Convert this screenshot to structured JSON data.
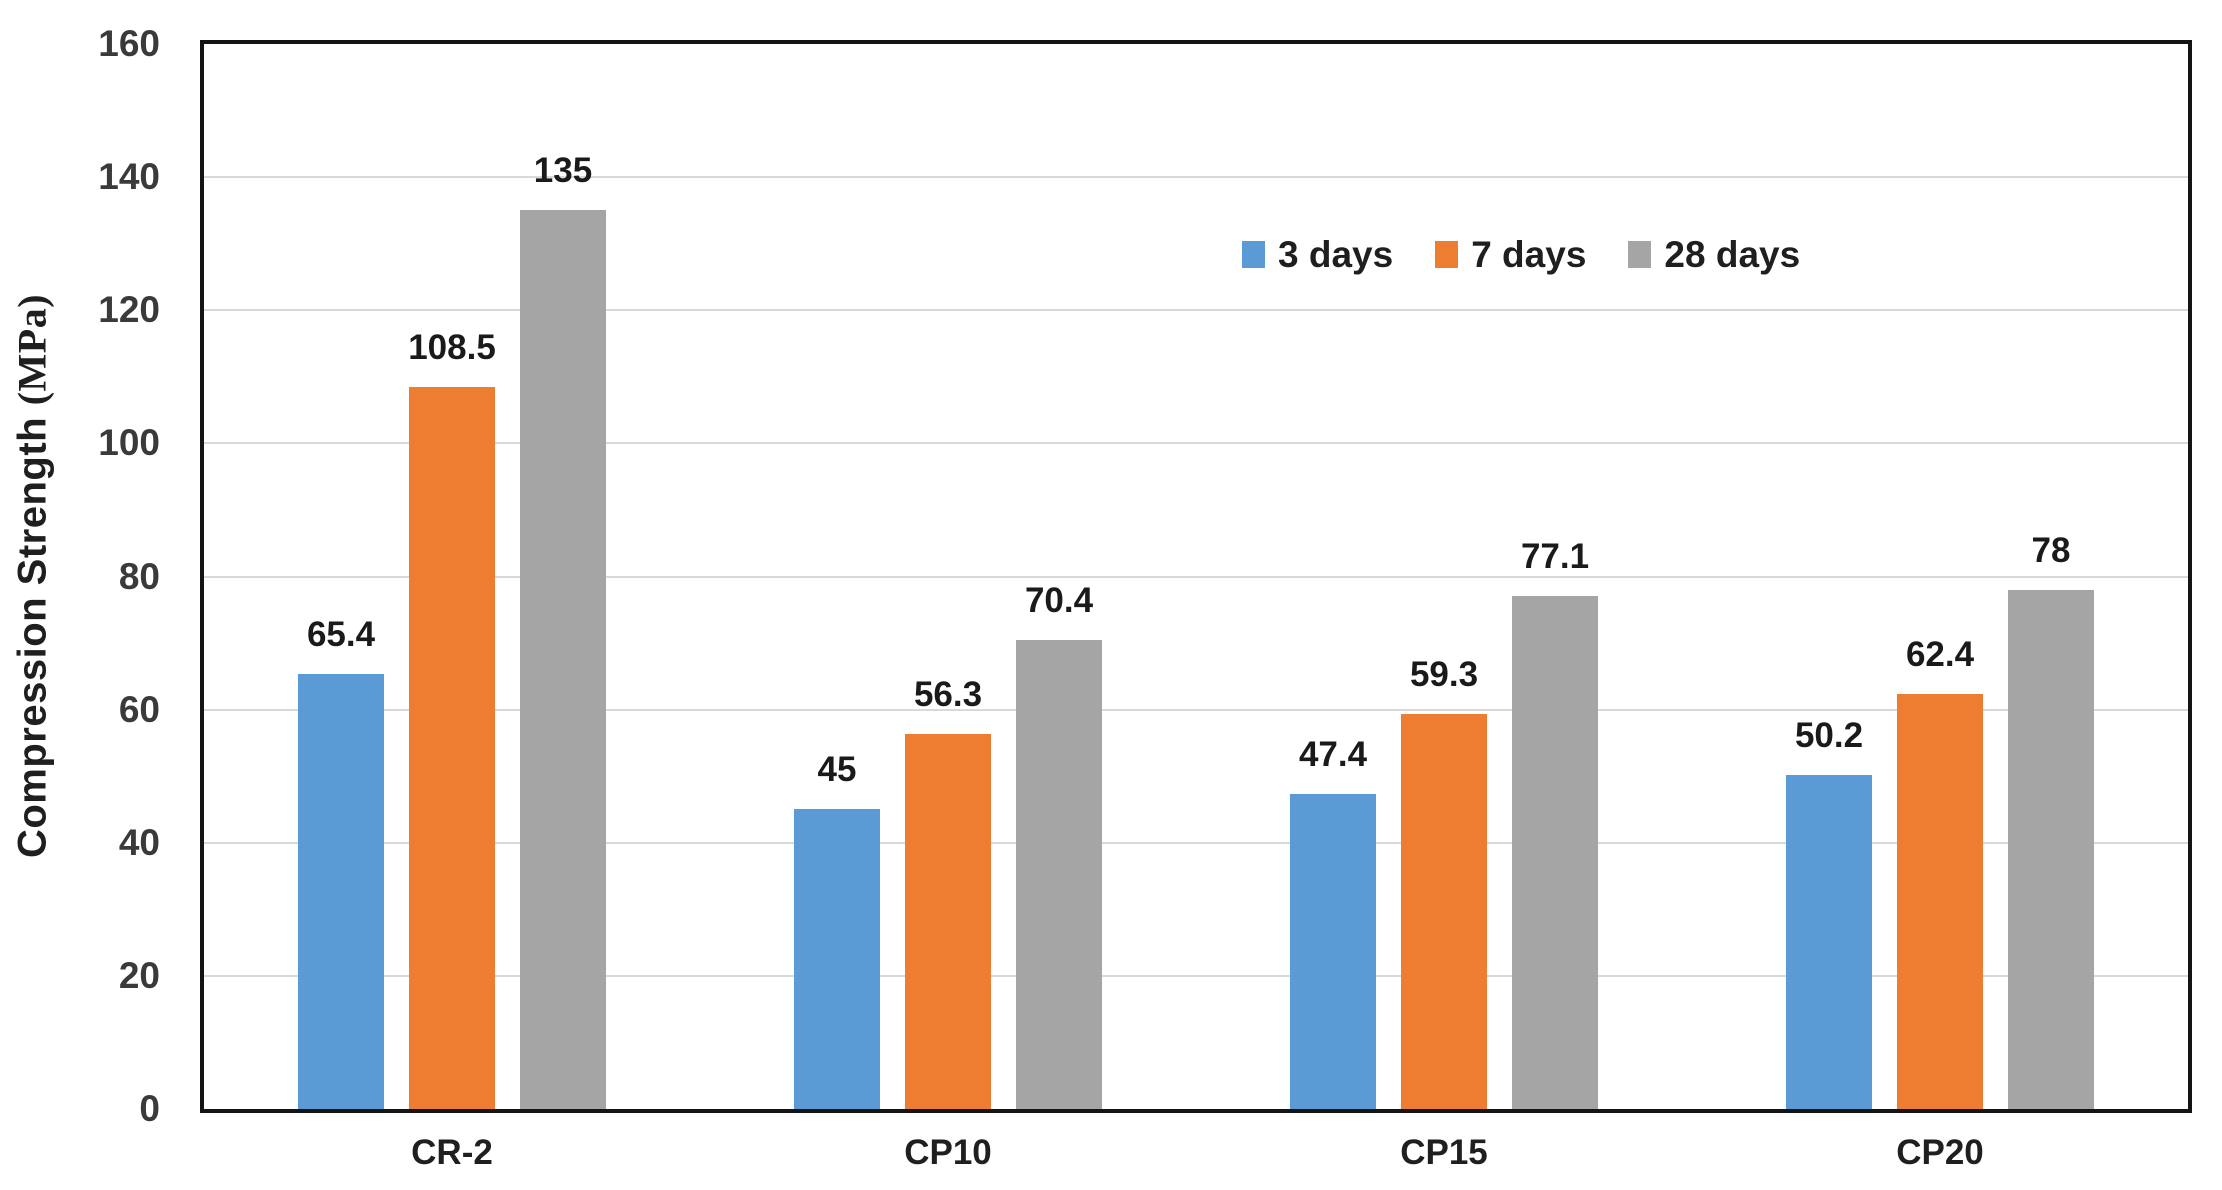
{
  "chart_data": {
    "type": "bar",
    "title": "",
    "xlabel": "",
    "ylabel": "Compression Strength (MPa)",
    "ylabel_parts": {
      "main": "Compression Strength ",
      "unit": "(MPa)"
    },
    "categories": [
      "CR-2",
      "CP10",
      "CP15",
      "CP20"
    ],
    "series": [
      {
        "name": "3 days",
        "color": "#5B9BD5",
        "values": [
          65.4,
          45,
          47.4,
          50.2
        ]
      },
      {
        "name": "7 days",
        "color": "#ED7D31",
        "values": [
          108.5,
          56.3,
          59.3,
          62.4
        ]
      },
      {
        "name": "28 days",
        "color": "#A5A5A5",
        "values": [
          135,
          70.4,
          77.1,
          78
        ]
      }
    ],
    "ylim": [
      0,
      160
    ],
    "ytick_step": 20,
    "yticks": [
      "0",
      "20",
      "40",
      "60",
      "80",
      "100",
      "120",
      "140",
      "160"
    ],
    "grid": "horizontal",
    "legend_position": "top-right inside plot area",
    "data_labels": "outside end"
  },
  "colors": {
    "background": "#FFFFFF",
    "plot_border": "#141414",
    "gridline": "#D9D9D9",
    "tick_text": "#3A3A3A",
    "label_text": "#1F1F1F",
    "series_blue": "#5B9BD5",
    "series_orange": "#ED7D31",
    "series_gray": "#A5A5A5"
  }
}
